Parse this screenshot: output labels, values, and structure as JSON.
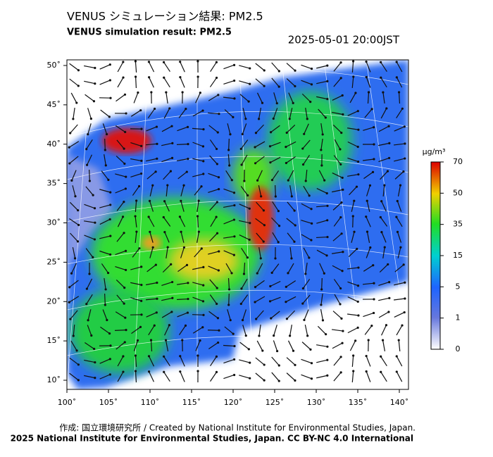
{
  "header": {
    "title_ja": "VENUS シミュレーション結果: PM2.5",
    "title_en": "VENUS simulation result: PM2.5",
    "datetime": "2025-05-01 20:00JST"
  },
  "map": {
    "lat_ticks": [
      {
        "value": 50,
        "label": "50˚"
      },
      {
        "value": 45,
        "label": "45˚"
      },
      {
        "value": 40,
        "label": "40˚"
      },
      {
        "value": 35,
        "label": "35˚"
      },
      {
        "value": 30,
        "label": "30˚"
      },
      {
        "value": 25,
        "label": "25˚"
      },
      {
        "value": 20,
        "label": "20˚"
      },
      {
        "value": 15,
        "label": "15˚"
      },
      {
        "value": 10,
        "label": "10˚"
      }
    ],
    "lon_ticks": [
      {
        "value": 100,
        "label": "100˚"
      },
      {
        "value": 105,
        "label": "105˚"
      },
      {
        "value": 110,
        "label": "110˚"
      },
      {
        "value": 115,
        "label": "115˚"
      },
      {
        "value": 120,
        "label": "120˚"
      },
      {
        "value": 125,
        "label": "125˚"
      },
      {
        "value": 130,
        "label": "130˚"
      },
      {
        "value": 135,
        "label": "135˚"
      },
      {
        "value": 140,
        "label": "140˚"
      }
    ]
  },
  "colorbar": {
    "unit": "μg/m³",
    "ticks": [
      70,
      50,
      35,
      15,
      5,
      1,
      0
    ]
  },
  "footer": {
    "credit": "作成: 国立環境研究所 / Created by National Institute for Environmental Studies, Japan.",
    "license": "2025 National Institute for Environmental Studies, Japan. CC BY-NC 4.0 International"
  }
}
